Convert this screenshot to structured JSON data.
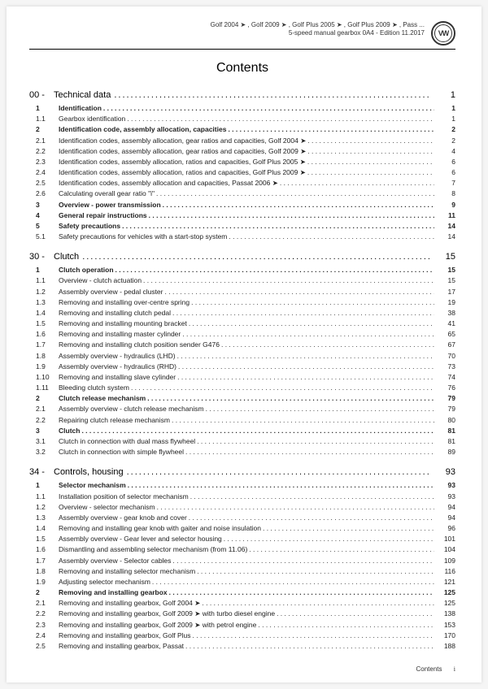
{
  "header": {
    "line1": "Golf 2004 ➤ , Golf 2009 ➤ , Golf Plus 2005 ➤ , Golf Plus 2009 ➤ , Pass ...",
    "line2": "5-speed manual gearbox 0A4 - Edition 11.2017",
    "logo_text": "VW"
  },
  "title": "Contents",
  "chapters": [
    {
      "num": "00 -",
      "label": "Technical data",
      "page": "1",
      "rows": [
        {
          "n": "1",
          "t": "Identification",
          "p": "1",
          "b": true
        },
        {
          "n": "1.1",
          "t": "Gearbox identification",
          "p": "1"
        },
        {
          "n": "2",
          "t": "Identification code, assembly allocation, capacities",
          "p": "2",
          "b": true
        },
        {
          "n": "2.1",
          "t": "Identification codes, assembly allocation, gear ratios and capacities, Golf 2004 ➤",
          "p": "2"
        },
        {
          "n": "2.2",
          "t": "Identification codes, assembly allocation, gear ratios and capacities, Golf 2009 ➤",
          "p": "4"
        },
        {
          "n": "2.3",
          "t": "Identification codes, assembly allocation, ratios and capacities, Golf Plus 2005 ➤",
          "p": "6"
        },
        {
          "n": "2.4",
          "t": "Identification codes, assembly allocation, ratios and capacities, Golf Plus 2009 ➤",
          "p": "6"
        },
        {
          "n": "2.5",
          "t": "Identification codes, assembly allocation and capacities, Passat 2006 ➤",
          "p": "7"
        },
        {
          "n": "2.6",
          "t": "Calculating overall gear ratio \"i\"",
          "p": "8"
        },
        {
          "n": "3",
          "t": "Overview - power transmission",
          "p": "9",
          "b": true
        },
        {
          "n": "4",
          "t": "General repair instructions",
          "p": "11",
          "b": true
        },
        {
          "n": "5",
          "t": "Safety precautions",
          "p": "14",
          "b": true
        },
        {
          "n": "5.1",
          "t": "Safety precautions for vehicles with a start-stop system",
          "p": "14"
        }
      ]
    },
    {
      "num": "30 -",
      "label": "Clutch",
      "page": "15",
      "rows": [
        {
          "n": "1",
          "t": "Clutch operation",
          "p": "15",
          "b": true
        },
        {
          "n": "1.1",
          "t": "Overview - clutch actuation",
          "p": "15"
        },
        {
          "n": "1.2",
          "t": "Assembly overview - pedal cluster",
          "p": "17"
        },
        {
          "n": "1.3",
          "t": "Removing and installing over-centre spring",
          "p": "19"
        },
        {
          "n": "1.4",
          "t": "Removing and installing clutch pedal",
          "p": "38"
        },
        {
          "n": "1.5",
          "t": "Removing and installing mounting bracket",
          "p": "41"
        },
        {
          "n": "1.6",
          "t": "Removing and installing master cylinder",
          "p": "65"
        },
        {
          "n": "1.7",
          "t": "Removing and installing clutch position sender G476",
          "p": "67"
        },
        {
          "n": "1.8",
          "t": "Assembly overview - hydraulics (LHD)",
          "p": "70"
        },
        {
          "n": "1.9",
          "t": "Assembly overview - hydraulics (RHD)",
          "p": "73"
        },
        {
          "n": "1.10",
          "t": "Removing and installing slave cylinder",
          "p": "74"
        },
        {
          "n": "1.11",
          "t": "Bleeding clutch system",
          "p": "76"
        },
        {
          "n": "2",
          "t": "Clutch release mechanism",
          "p": "79",
          "b": true
        },
        {
          "n": "2.1",
          "t": "Assembly overview - clutch release mechanism",
          "p": "79"
        },
        {
          "n": "2.2",
          "t": "Repairing clutch release mechanism",
          "p": "80"
        },
        {
          "n": "3",
          "t": "Clutch",
          "p": "81",
          "b": true
        },
        {
          "n": "3.1",
          "t": "Clutch in connection with dual mass flywheel",
          "p": "81"
        },
        {
          "n": "3.2",
          "t": "Clutch in connection with simple flywheel",
          "p": "89"
        }
      ]
    },
    {
      "num": "34 -",
      "label": "Controls, housing",
      "page": "93",
      "rows": [
        {
          "n": "1",
          "t": "Selector mechanism",
          "p": "93",
          "b": true
        },
        {
          "n": "1.1",
          "t": "Installation position of selector mechanism",
          "p": "93"
        },
        {
          "n": "1.2",
          "t": "Overview - selector mechanism",
          "p": "94"
        },
        {
          "n": "1.3",
          "t": "Assembly overview - gear knob and cover",
          "p": "94"
        },
        {
          "n": "1.4",
          "t": "Removing and installing gear knob with gaiter and noise insulation",
          "p": "96"
        },
        {
          "n": "1.5",
          "t": "Assembly overview - Gear lever and selector housing",
          "p": "101"
        },
        {
          "n": "1.6",
          "t": "Dismantling and assembling selector mechanism (from 11.06)",
          "p": "104"
        },
        {
          "n": "1.7",
          "t": "Assembly overview - Selector cables",
          "p": "109"
        },
        {
          "n": "1.8",
          "t": "Removing and installing selector mechanism",
          "p": "116"
        },
        {
          "n": "1.9",
          "t": "Adjusting selector mechanism",
          "p": "121"
        },
        {
          "n": "2",
          "t": "Removing and installing gearbox",
          "p": "125",
          "b": true
        },
        {
          "n": "2.1",
          "t": "Removing and installing gearbox, Golf 2004 ➤",
          "p": "125"
        },
        {
          "n": "2.2",
          "t": "Removing and installing gearbox, Golf 2009 ➤ with turbo diesel engine",
          "p": "138"
        },
        {
          "n": "2.3",
          "t": "Removing and installing gearbox, Golf 2009 ➤ with petrol engine",
          "p": "153"
        },
        {
          "n": "2.4",
          "t": "Removing and installing gearbox, Golf Plus",
          "p": "170"
        },
        {
          "n": "2.5",
          "t": "Removing and installing gearbox, Passat",
          "p": "188"
        }
      ]
    }
  ],
  "footer": {
    "label": "Contents",
    "page": "i"
  }
}
